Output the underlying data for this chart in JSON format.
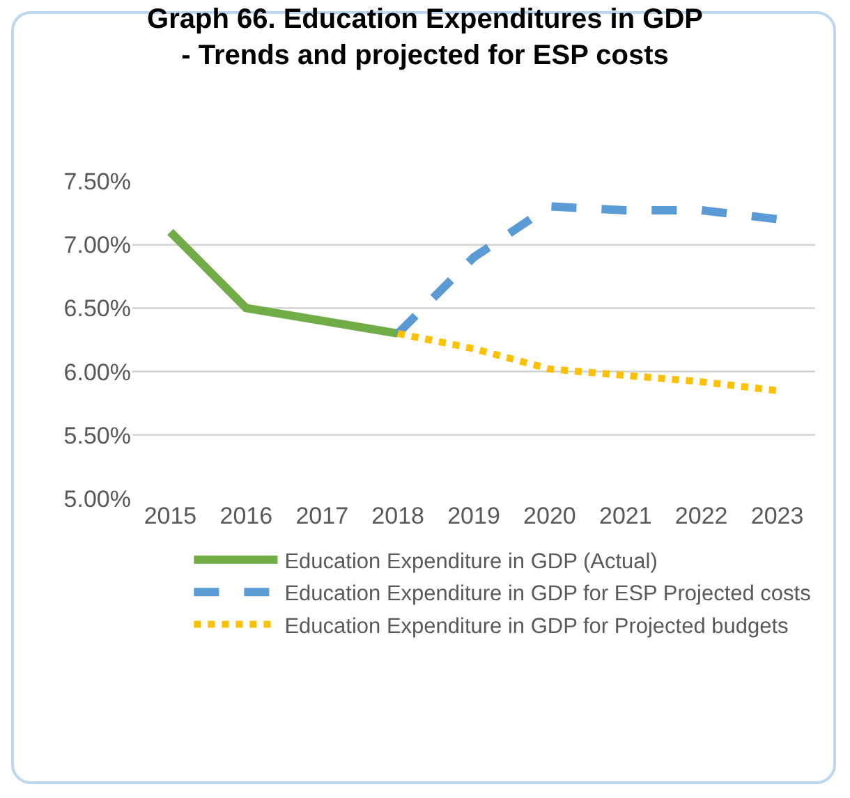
{
  "chart_data": {
    "type": "line",
    "title": "Graph 66. Education Expenditures in GDP\n- Trends and projected for ESP costs",
    "categories": [
      "2015",
      "2016",
      "2017",
      "2018",
      "2019",
      "2020",
      "2021",
      "2022",
      "2023"
    ],
    "series": [
      {
        "name": "Education Expenditure in GDP (Actual)",
        "color": "#70ad47",
        "line_style": "solid",
        "values": [
          7.1,
          6.5,
          6.4,
          6.3,
          null,
          null,
          null,
          null,
          null
        ]
      },
      {
        "name": "Education Expenditure in GDP for ESP Projected costs",
        "color": "#5b9bd5",
        "line_style": "dashed",
        "values": [
          null,
          null,
          null,
          6.3,
          6.9,
          7.3,
          7.27,
          7.27,
          7.2
        ]
      },
      {
        "name": "Education Expenditure in GDP for Projected budgets",
        "color": "#ffc000",
        "line_style": "dotted",
        "values": [
          null,
          null,
          null,
          6.3,
          6.18,
          6.02,
          5.97,
          5.92,
          5.85
        ]
      }
    ],
    "ylim": [
      5,
      7.5
    ],
    "yticks": [
      {
        "value": 5,
        "label": "5.00%"
      },
      {
        "value": 5.5,
        "label": "5.50%"
      },
      {
        "value": 6,
        "label": "6.00%"
      },
      {
        "value": 6.5,
        "label": "6.50%"
      },
      {
        "value": 7,
        "label": "7.00%"
      },
      {
        "value": 7.5,
        "label": "7.50%"
      }
    ],
    "grid": "y",
    "legend": "bottom",
    "marker": "none"
  }
}
